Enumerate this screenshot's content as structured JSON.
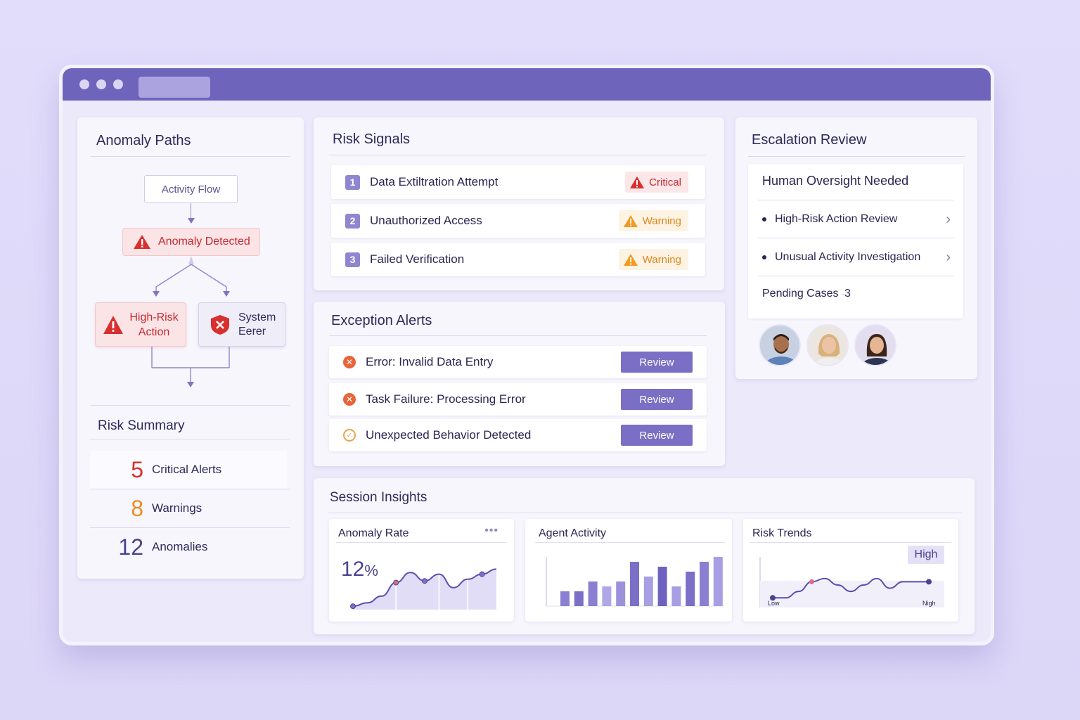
{
  "anomaly_paths": {
    "title": "Anomaly Paths",
    "flow_root": "Activity Flow",
    "anomaly_detected": "Anomaly Detected",
    "high_risk_action": "High-Risk Action",
    "system_error": "System Eerer"
  },
  "risk_summary": {
    "title": "Risk Summary",
    "items": [
      {
        "value": "5",
        "label": "Critical Alerts",
        "color": "#d8302f"
      },
      {
        "value": "8",
        "label": "Warnings",
        "color": "#f08c22"
      },
      {
        "value": "12",
        "label": "Anomalies",
        "color": "#4a4390"
      }
    ]
  },
  "risk_signals": {
    "title": "Risk Signals",
    "items": [
      {
        "index": "1",
        "label": "Data Extiltration Attempt",
        "severity": "Critical"
      },
      {
        "index": "2",
        "label": "Unauthorized Access",
        "severity": "Warning"
      },
      {
        "index": "3",
        "label": "Failed Verification",
        "severity": "Warning"
      }
    ]
  },
  "exception_alerts": {
    "title": "Exception Alerts",
    "items": [
      {
        "label": "Error: Invalid Data Entry",
        "button": "Review"
      },
      {
        "label": "Task Failure: Processing Error",
        "button": "Review"
      },
      {
        "label": "Unexpected Behavior Detected",
        "button": "Review"
      }
    ]
  },
  "escalation_review": {
    "title": "Escalation Review",
    "header": "Human Oversight Needed",
    "items": [
      {
        "label": "High-Risk Action Review"
      },
      {
        "label": "Unusual Activity Investigation"
      }
    ],
    "pending_label": "Pending Cases",
    "pending_count": "3"
  },
  "session_insights": {
    "title": "Session Insights",
    "anomaly_rate": {
      "title": "Anomaly Rate",
      "value": "12",
      "unit": "%"
    },
    "agent_activity": {
      "title": "Agent Activity"
    },
    "risk_trends": {
      "title": "Risk Trends",
      "badge": "High",
      "low_label": "Low",
      "high_label": "Nigh"
    }
  },
  "chart_data": [
    {
      "type": "area",
      "title": "Anomaly Rate",
      "values": [
        2,
        4,
        8,
        16,
        22,
        17,
        21,
        13,
        18,
        21,
        24
      ],
      "ylim": [
        0,
        30
      ],
      "marker_indices": [
        0,
        3,
        5,
        9
      ]
    },
    {
      "type": "bar",
      "title": "Agent Activity",
      "values": [
        3,
        3,
        5,
        4,
        5,
        9,
        6,
        8,
        4,
        7,
        9,
        10
      ],
      "ylim": [
        0,
        10
      ]
    },
    {
      "type": "line",
      "title": "Risk Trends",
      "values": [
        3,
        3,
        5,
        8,
        9,
        7,
        5,
        7,
        9,
        6,
        8,
        8,
        8
      ],
      "ylim": [
        0,
        14
      ],
      "marker_indices": [
        0,
        3,
        12
      ]
    }
  ]
}
